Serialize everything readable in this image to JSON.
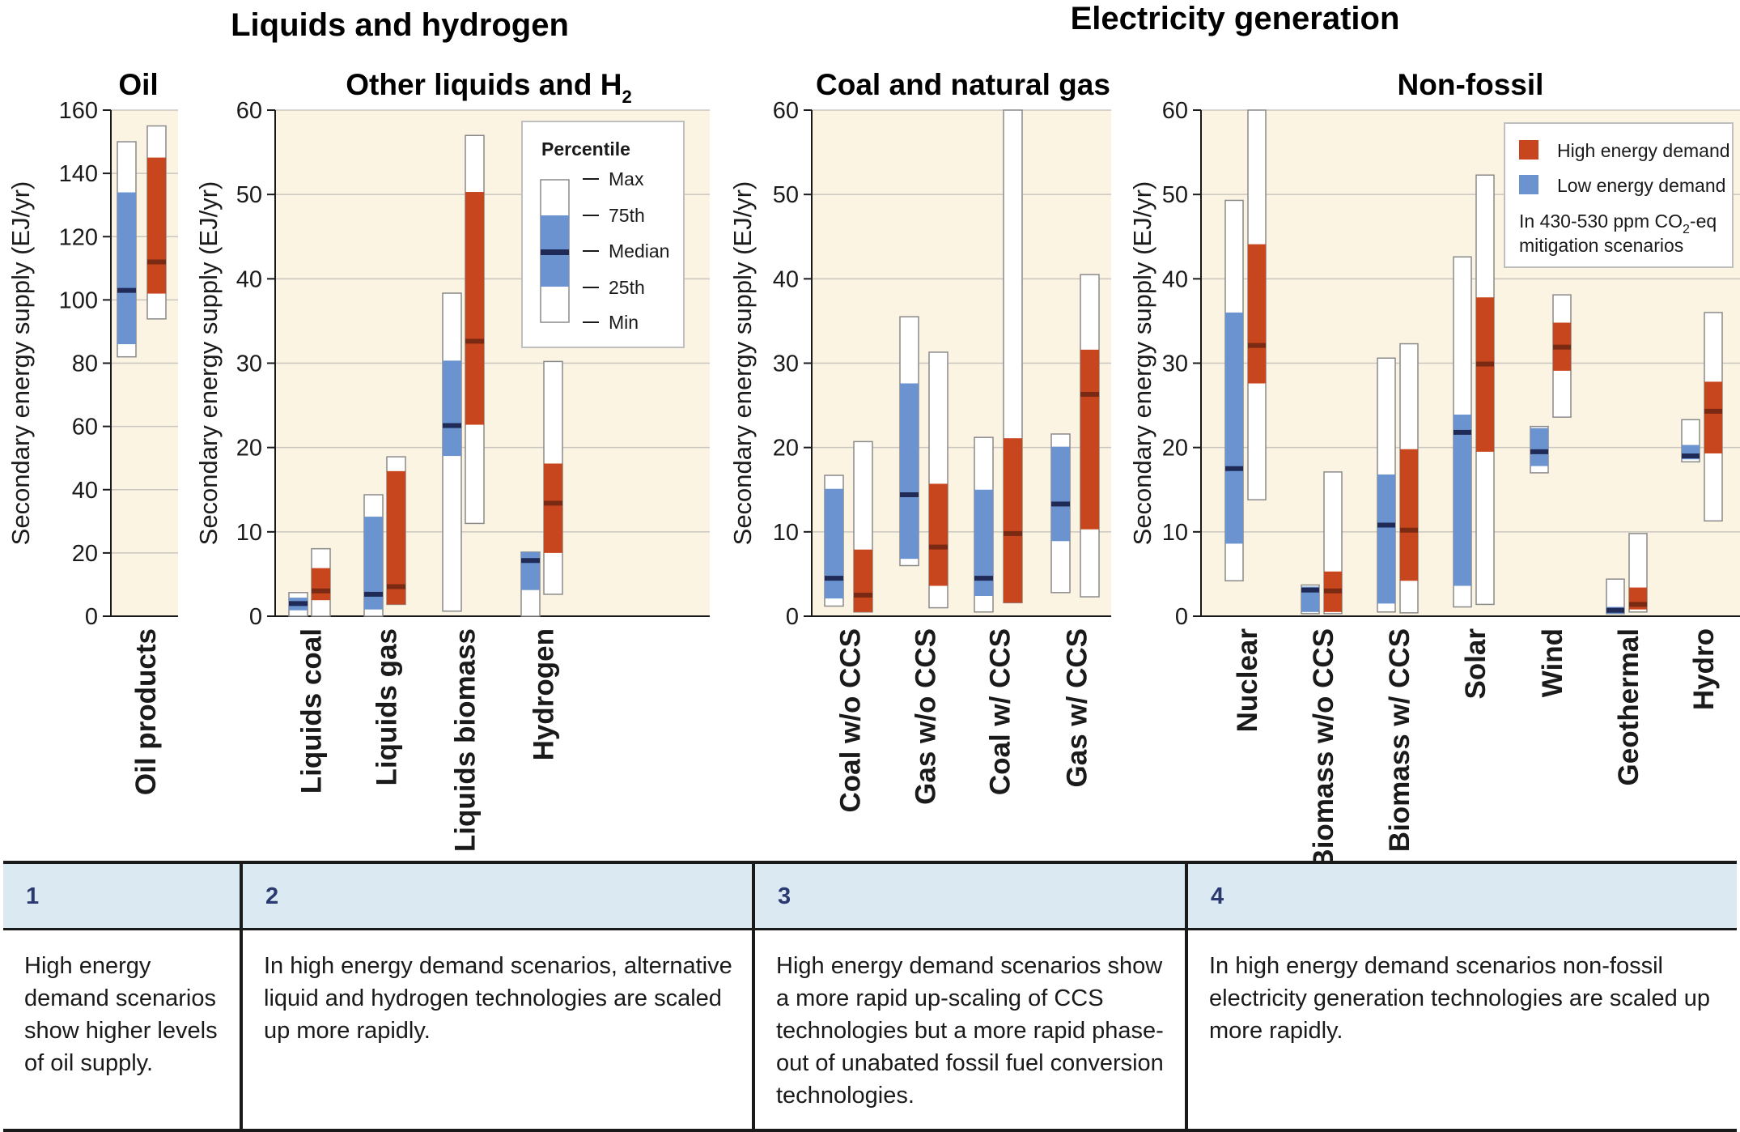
{
  "titles": {
    "group_left": "Liquids and hydrogen",
    "group_right": "Electricity generation"
  },
  "colors": {
    "high": "#c8461e",
    "low": "#6b93cf",
    "panel_bg": "#fbf4e3",
    "median": "#1f2a57"
  },
  "legend_percentile": {
    "title": "Percentile",
    "labels": [
      "Max",
      "75th",
      "Median",
      "25th",
      "Min"
    ]
  },
  "legend_scenario": {
    "high_label": "High energy demand",
    "low_label": "Low energy demand",
    "note_line1": "In 430-530 ppm CO",
    "note_sub": "2",
    "note_line1_end": "-eq",
    "note_line2": "mitigation scenarios"
  },
  "chart_data": [
    {
      "type": "box",
      "title": "Oil",
      "ylabel": "Secondary energy supply (EJ/yr)",
      "ylim": [
        0,
        160
      ],
      "yticks": [
        0,
        20,
        40,
        60,
        80,
        100,
        120,
        140,
        160
      ],
      "categories": [
        "Oil products"
      ],
      "series": [
        {
          "name": "Low energy demand",
          "stats": [
            {
              "min": 82,
              "q25": 86,
              "median": 103,
              "q75": 134,
              "max": 150
            }
          ]
        },
        {
          "name": "High energy demand",
          "stats": [
            {
              "min": 94,
              "q25": 102,
              "median": 112,
              "q75": 145,
              "max": 155
            }
          ]
        }
      ]
    },
    {
      "type": "box",
      "title": "Other liquids and H",
      "title_sub": "2",
      "ylabel": "Secondary energy supply (EJ/yr)",
      "ylim": [
        0,
        60
      ],
      "yticks": [
        0,
        10,
        20,
        30,
        40,
        50,
        60
      ],
      "categories": [
        "Liquids coal",
        "Liquids gas",
        "Liquids biomass",
        "Hydrogen"
      ],
      "series": [
        {
          "name": "Low energy demand",
          "stats": [
            {
              "min": 0,
              "q25": 0.7,
              "median": 1.5,
              "q75": 2.2,
              "max": 2.8
            },
            {
              "min": 0,
              "q25": 0.8,
              "median": 2.6,
              "q75": 11.8,
              "max": 14.4
            },
            {
              "min": 0.6,
              "q25": 19,
              "median": 22.6,
              "q75": 30.3,
              "max": 38.3
            },
            {
              "min": 0,
              "q25": 3.1,
              "median": 6.6,
              "q75": 7.6,
              "max": 7.6
            }
          ]
        },
        {
          "name": "High energy demand",
          "stats": [
            {
              "min": 0,
              "q25": 1.9,
              "median": 3,
              "q75": 5.7,
              "max": 8
            },
            {
              "min": 1.4,
              "q25": 1.4,
              "median": 3.5,
              "q75": 17.2,
              "max": 18.9
            },
            {
              "min": 11,
              "q25": 22.7,
              "median": 32.6,
              "q75": 50.3,
              "max": 57
            },
            {
              "min": 2.6,
              "q25": 7.5,
              "median": 13.4,
              "q75": 18.1,
              "max": 30.2
            }
          ]
        }
      ]
    },
    {
      "type": "box",
      "title": "Coal and natural gas",
      "ylabel": "Secondary energy supply (EJ/yr)",
      "ylim": [
        0,
        60
      ],
      "yticks": [
        0,
        10,
        20,
        30,
        40,
        50,
        60
      ],
      "categories": [
        "Coal w/o CCS",
        "Gas w/o CCS",
        "Coal w/ CCS",
        "Gas w/ CCS"
      ],
      "series": [
        {
          "name": "Low energy demand",
          "stats": [
            {
              "min": 1.2,
              "q25": 2.1,
              "median": 4.5,
              "q75": 15.1,
              "max": 16.7
            },
            {
              "min": 6,
              "q25": 6.8,
              "median": 14.4,
              "q75": 27.6,
              "max": 35.5
            },
            {
              "min": 0.5,
              "q25": 2.4,
              "median": 4.5,
              "q75": 15,
              "max": 21.2
            },
            {
              "min": 2.8,
              "q25": 8.9,
              "median": 13.3,
              "q75": 20.1,
              "max": 21.6
            }
          ]
        },
        {
          "name": "High energy demand",
          "stats": [
            {
              "min": 0.5,
              "q25": 0.5,
              "median": 2.5,
              "q75": 7.9,
              "max": 20.7
            },
            {
              "min": 1,
              "q25": 3.6,
              "median": 8.2,
              "q75": 15.7,
              "max": 31.3
            },
            {
              "min": 1.6,
              "q25": 1.6,
              "median": 9.8,
              "q75": 21.1,
              "max": 60
            },
            {
              "min": 2.3,
              "q25": 10.3,
              "median": 26.3,
              "q75": 31.6,
              "max": 40.5
            }
          ]
        }
      ]
    },
    {
      "type": "box",
      "title": "Non-fossil",
      "ylabel": "Secondary energy supply (EJ/yr)",
      "ylim": [
        0,
        60
      ],
      "yticks": [
        0,
        10,
        20,
        30,
        40,
        50,
        60
      ],
      "categories": [
        "Nuclear",
        "Biomass w/o CCS",
        "Biomass w/ CCS",
        "Solar",
        "Wind",
        "Geothermal",
        "Hydro"
      ],
      "series": [
        {
          "name": "Low energy demand",
          "stats": [
            {
              "min": 4.2,
              "q25": 8.6,
              "median": 17.5,
              "q75": 36,
              "max": 49.3
            },
            {
              "min": 0.3,
              "q25": 0.5,
              "median": 3.1,
              "q75": 3.5,
              "max": 3.7
            },
            {
              "min": 0.5,
              "q25": 1.5,
              "median": 10.8,
              "q75": 16.8,
              "max": 30.6
            },
            {
              "min": 1.1,
              "q25": 3.6,
              "median": 21.8,
              "q75": 23.9,
              "max": 42.6
            },
            {
              "min": 17,
              "q25": 17.8,
              "median": 19.5,
              "q75": 22.3,
              "max": 22.5
            },
            {
              "min": 0.3,
              "q25": 0.3,
              "median": 0.7,
              "q75": 1.1,
              "max": 4.4
            },
            {
              "min": 18.3,
              "q25": 18.6,
              "median": 19,
              "q75": 20.3,
              "max": 23.3
            }
          ]
        },
        {
          "name": "High energy demand",
          "stats": [
            {
              "min": 13.8,
              "q25": 27.6,
              "median": 32.1,
              "q75": 44.1,
              "max": 60
            },
            {
              "min": 0.3,
              "q25": 0.5,
              "median": 3,
              "q75": 5.3,
              "max": 17.1
            },
            {
              "min": 0.4,
              "q25": 4.2,
              "median": 10.2,
              "q75": 19.8,
              "max": 32.3
            },
            {
              "min": 1.4,
              "q25": 19.5,
              "median": 29.9,
              "q75": 37.8,
              "max": 52.3
            },
            {
              "min": 23.6,
              "q25": 29.1,
              "median": 31.9,
              "q75": 34.8,
              "max": 38.1
            },
            {
              "min": 0.5,
              "q25": 0.8,
              "median": 1.4,
              "q75": 3.4,
              "max": 9.8
            },
            {
              "min": 11.3,
              "q25": 19.3,
              "median": 24.3,
              "q75": 27.8,
              "max": 36
            }
          ]
        }
      ]
    }
  ],
  "notes": [
    {
      "num": "1",
      "text": "High energy demand scenarios show higher levels of oil supply."
    },
    {
      "num": "2",
      "text": "In high energy demand scenarios, alternative liquid and hydrogen technologies are scaled up more rapidly."
    },
    {
      "num": "3",
      "text": "High energy demand scenarios show a more rapid up-scaling of CCS technologies but a more rapid phase-out of unabated fossil fuel conversion technologies."
    },
    {
      "num": "4",
      "text": "In high energy demand scenarios non-fossil electricity generation technologies are scaled up more rapidly."
    }
  ]
}
